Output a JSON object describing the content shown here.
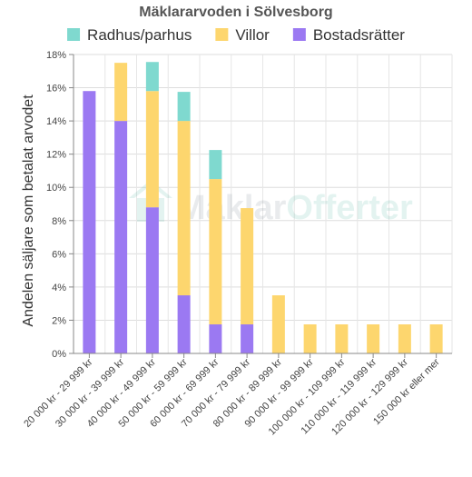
{
  "chart_data": {
    "type": "bar",
    "stacked": true,
    "title": "Mäklararvoden i Sölvesborg",
    "ylabel": "Andelen säljare som betalat arvodet",
    "xlabel": "",
    "ylim": [
      0,
      18
    ],
    "yticks": [
      0,
      2,
      4,
      6,
      8,
      10,
      12,
      14,
      16,
      18
    ],
    "ytick_labels": [
      "0%",
      "2%",
      "4%",
      "6%",
      "8%",
      "10%",
      "12%",
      "14%",
      "16%",
      "18%"
    ],
    "grid": true,
    "legend_position": "top",
    "categories": [
      "20 000 kr - 29 999 kr",
      "30 000 kr - 39 999 kr",
      "40 000 kr - 49 999 kr",
      "50 000 kr - 59 999 kr",
      "60 000 kr - 69 999 kr",
      "70 000 kr - 79 999 kr",
      "80 000 kr - 89 999 kr",
      "90 000 kr - 99 999 kr",
      "100 000 kr - 109 999 kr",
      "110 000 kr - 119 999 kr",
      "120 000 kr - 129 999 kr",
      "150 000 kr eller mer"
    ],
    "series": [
      {
        "name": "Bostadsrätter",
        "color": "#9b79f2",
        "values": [
          15.8,
          14.0,
          8.8,
          3.5,
          1.75,
          1.75,
          0,
          0,
          0,
          0,
          0,
          0
        ]
      },
      {
        "name": "Villor",
        "color": "#fdd66e",
        "values": [
          0,
          3.5,
          7.0,
          10.5,
          8.75,
          7.0,
          3.5,
          1.75,
          1.75,
          1.75,
          1.75,
          1.75
        ]
      },
      {
        "name": "Radhus/parhus",
        "color": "#7fd9cf",
        "values": [
          0,
          0,
          1.75,
          1.75,
          1.75,
          0,
          0,
          0,
          0,
          0,
          0,
          0
        ]
      }
    ],
    "legend_order": [
      "Radhus/parhus",
      "Villor",
      "Bostadsrätter"
    ]
  },
  "watermark": {
    "part1": "Mäklar",
    "part2": "Offerter"
  }
}
